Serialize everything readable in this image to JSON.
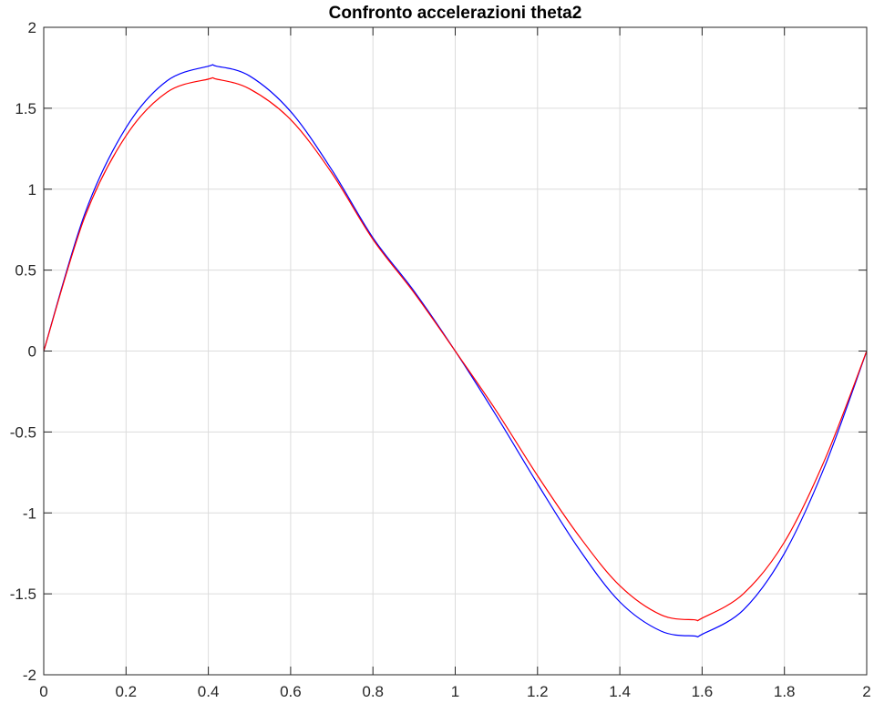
{
  "chart_data": {
    "type": "line",
    "title": "Confronto accelerazioni theta2",
    "xlabel": "",
    "ylabel": "",
    "xlim": [
      0,
      2
    ],
    "ylim": [
      -2,
      2
    ],
    "grid": true,
    "x_ticks": [
      0,
      0.2,
      0.4,
      0.6,
      0.8,
      1,
      1.2,
      1.4,
      1.6,
      1.8,
      2
    ],
    "x_tick_labels": [
      "0",
      "0.2",
      "0.4",
      "0.6",
      "0.8",
      "1",
      "1.2",
      "1.4",
      "1.6",
      "1.8",
      "2"
    ],
    "y_ticks": [
      -2,
      -1.5,
      -1,
      -0.5,
      0,
      0.5,
      1,
      1.5,
      2
    ],
    "y_tick_labels": [
      "-2",
      "-1.5",
      "-1",
      "-0.5",
      "0",
      "0.5",
      "1",
      "1.5",
      "2"
    ],
    "x": [
      0,
      0.1,
      0.2,
      0.3,
      0.4,
      0.42,
      0.5,
      0.6,
      0.7,
      0.8,
      0.9,
      1.0,
      1.1,
      1.2,
      1.3,
      1.4,
      1.5,
      1.58,
      1.6,
      1.7,
      1.8,
      1.9,
      2.0
    ],
    "series": [
      {
        "color": "#0000ff",
        "values": [
          0,
          0.85,
          1.38,
          1.67,
          1.76,
          1.76,
          1.7,
          1.48,
          1.12,
          0.7,
          0.37,
          0,
          -0.4,
          -0.82,
          -1.22,
          -1.55,
          -1.73,
          -1.76,
          -1.75,
          -1.6,
          -1.25,
          -0.7,
          0
        ]
      },
      {
        "color": "#ff0000",
        "values": [
          0,
          0.83,
          1.33,
          1.6,
          1.68,
          1.68,
          1.62,
          1.43,
          1.1,
          0.69,
          0.36,
          0,
          -0.37,
          -0.77,
          -1.14,
          -1.45,
          -1.63,
          -1.66,
          -1.65,
          -1.5,
          -1.18,
          -0.66,
          0
        ]
      }
    ]
  }
}
